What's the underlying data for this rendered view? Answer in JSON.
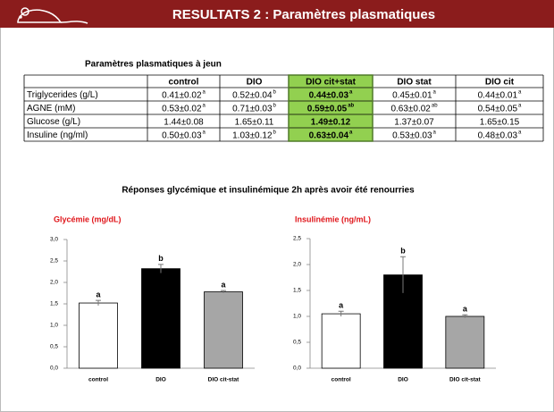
{
  "header": {
    "title": "RESULTATS 2 : Paramètres plasmatiques"
  },
  "table": {
    "title": "Paramètres plasmatiques à jeun",
    "header": [
      "",
      "control",
      "DIO",
      "DIO cit+stat",
      "DIO stat",
      "DIO cit"
    ],
    "rows": [
      {
        "label": "Triglycerides (g/L)",
        "cells": [
          {
            "text": "0.41±0.02",
            "sup": "a"
          },
          {
            "text": "0.52±0.04",
            "sup": "b"
          },
          {
            "text": "0.44±0.03",
            "sup": "a"
          },
          {
            "text": "0.45±0.01",
            "sup": "a"
          },
          {
            "text": "0.44±0.01",
            "sup": "a"
          }
        ]
      },
      {
        "label": "AGNE (mM)",
        "cells": [
          {
            "text": "0.53±0.02",
            "sup": "a"
          },
          {
            "text": "0.71±0.03",
            "sup": "b"
          },
          {
            "text": "0.59±0.05",
            "sup": "ab"
          },
          {
            "text": "0.63±0.02",
            "sup": "ab"
          },
          {
            "text": "0.54±0.05",
            "sup": "a"
          }
        ]
      },
      {
        "label": "Glucose (g/L)",
        "cells": [
          {
            "text": "1.44±0.08"
          },
          {
            "text": "1.65±0.11"
          },
          {
            "text": "1.49±0.12"
          },
          {
            "text": "1.37±0.07"
          },
          {
            "text": "1.65±0.15"
          }
        ]
      },
      {
        "label": "Insuline (ng/ml)",
        "cells": [
          {
            "text": "0.50±0.03",
            "sup": "a"
          },
          {
            "text": "1.03±0.12",
            "sup": "b"
          },
          {
            "text": "0.63±0.04",
            "sup": "a"
          },
          {
            "text": "0.53±0.03",
            "sup": "a"
          },
          {
            "text": "0.48±0.03",
            "sup": "a"
          }
        ]
      }
    ]
  },
  "section_title": "Réponses glycémique et insulinémique 2h après avoir été renourries",
  "chart_data": [
    {
      "type": "bar",
      "title": "Glycémie (mg/dL)",
      "categories": [
        "control",
        "DIO",
        "DIO cit-stat"
      ],
      "values": [
        1.52,
        2.32,
        1.78
      ],
      "errors": [
        0.06,
        0.1,
        0.03
      ],
      "labels": [
        "a",
        "b",
        "a"
      ],
      "colors": [
        "#ffffff",
        "#000000",
        "#a6a6a6"
      ],
      "ylim": [
        0,
        3
      ],
      "yticks": [
        {
          "value": 0,
          "label": "0,0"
        },
        {
          "value": 0.5,
          "label": "0,5"
        },
        {
          "value": 1,
          "label": "1,0"
        },
        {
          "value": 1.5,
          "label": "1,5"
        },
        {
          "value": 2,
          "label": "2,0"
        },
        {
          "value": 2.5,
          "label": "2,5"
        },
        {
          "value": 3,
          "label": "3,0"
        }
      ]
    },
    {
      "type": "bar",
      "title": "Insulinémie (ng/mL)",
      "categories": [
        "control",
        "DIO",
        "DIO cit-stat"
      ],
      "values": [
        1.05,
        1.8,
        1.0
      ],
      "errors": [
        0.05,
        0.35,
        0.03
      ],
      "labels": [
        "a",
        "b",
        "a"
      ],
      "colors": [
        "#ffffff",
        "#000000",
        "#a6a6a6"
      ],
      "ylim": [
        0,
        2.5
      ],
      "yticks": [
        {
          "value": 0,
          "label": "0,0"
        },
        {
          "value": 0.5,
          "label": "0,5"
        },
        {
          "value": 1,
          "label": "1,0"
        },
        {
          "value": 1.5,
          "label": "1,5"
        },
        {
          "value": 2,
          "label": "2,0"
        },
        {
          "value": 2.5,
          "label": "2,5"
        }
      ]
    }
  ]
}
